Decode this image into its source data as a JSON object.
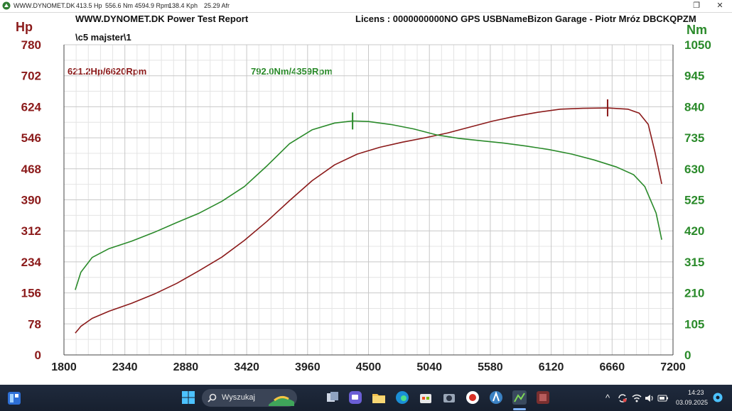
{
  "window": {
    "title": "WWW.DYNOMET.DK",
    "stats": {
      "hp": "413.5 Hp",
      "nm_rpm": "556.6 Nm 4594.9 Rpm",
      "kph": "138.4 Kph",
      "afr": "25.29 Afr"
    },
    "restore_glyph": "❐",
    "close_glyph": "✕"
  },
  "report": {
    "title": "WWW.DYNOMET.DK  Power Test Report",
    "license": "Licens :  0000000000NO GPS USBNameBizon Garage - Piotr Mróz  DBCKQPZM",
    "run_path": "\\c5 majster\\1"
  },
  "chart_data": {
    "type": "line",
    "x": {
      "label": "",
      "ticks": [
        1800,
        2340,
        2880,
        3420,
        3960,
        4500,
        5040,
        5580,
        6120,
        6660,
        7200
      ],
      "range": [
        1800,
        7200
      ]
    },
    "y_left": {
      "unit": "Hp",
      "ticks": [
        0,
        78,
        156,
        234,
        312,
        390,
        468,
        546,
        624,
        702,
        780
      ],
      "range": [
        0,
        780
      ],
      "color": "#8b1a1a"
    },
    "y_right": {
      "unit": "Nm",
      "ticks": [
        0,
        105,
        210,
        315,
        420,
        525,
        630,
        735,
        840,
        945,
        1050
      ],
      "range": [
        0,
        1050
      ],
      "color": "#2a8a2a"
    },
    "grid": true,
    "series": [
      {
        "name": "Hp",
        "axis": "left",
        "color": "#8b1a1a",
        "peak_label": "621.2Hp/6620Rpm",
        "peak": {
          "x": 6620,
          "y": 621.2
        },
        "x": [
          1900,
          1950,
          2050,
          2200,
          2400,
          2600,
          2800,
          3000,
          3200,
          3400,
          3600,
          3800,
          4000,
          4200,
          4400,
          4600,
          4800,
          5000,
          5200,
          5400,
          5600,
          5800,
          6000,
          6200,
          6400,
          6620,
          6800,
          6900,
          6980,
          7040,
          7100
        ],
        "values": [
          55,
          72,
          92,
          110,
          130,
          153,
          180,
          212,
          246,
          288,
          336,
          388,
          438,
          478,
          505,
          522,
          535,
          546,
          558,
          573,
          588,
          600,
          610,
          618,
          620,
          621,
          618,
          608,
          580,
          510,
          430
        ]
      },
      {
        "name": "Nm",
        "axis": "right",
        "color": "#2a8a2a",
        "peak_label": "792.0Nm/4359Rpm",
        "peak": {
          "x": 4359,
          "y": 792.0
        },
        "x": [
          1900,
          1950,
          2050,
          2200,
          2400,
          2600,
          2800,
          3000,
          3200,
          3400,
          3600,
          3800,
          4000,
          4200,
          4359,
          4500,
          4700,
          4900,
          5100,
          5300,
          5500,
          5700,
          5900,
          6100,
          6300,
          6500,
          6700,
          6850,
          6950,
          7050,
          7100
        ],
        "values": [
          220,
          280,
          330,
          360,
          385,
          415,
          448,
          480,
          520,
          570,
          640,
          715,
          762,
          785,
          792,
          790,
          780,
          765,
          745,
          733,
          725,
          717,
          707,
          695,
          680,
          660,
          636,
          610,
          570,
          480,
          390
        ]
      }
    ]
  },
  "taskbar": {
    "search_label": "Wyszukaj",
    "time": "14:23",
    "date": "03.09.2025",
    "tray_up": "^"
  }
}
